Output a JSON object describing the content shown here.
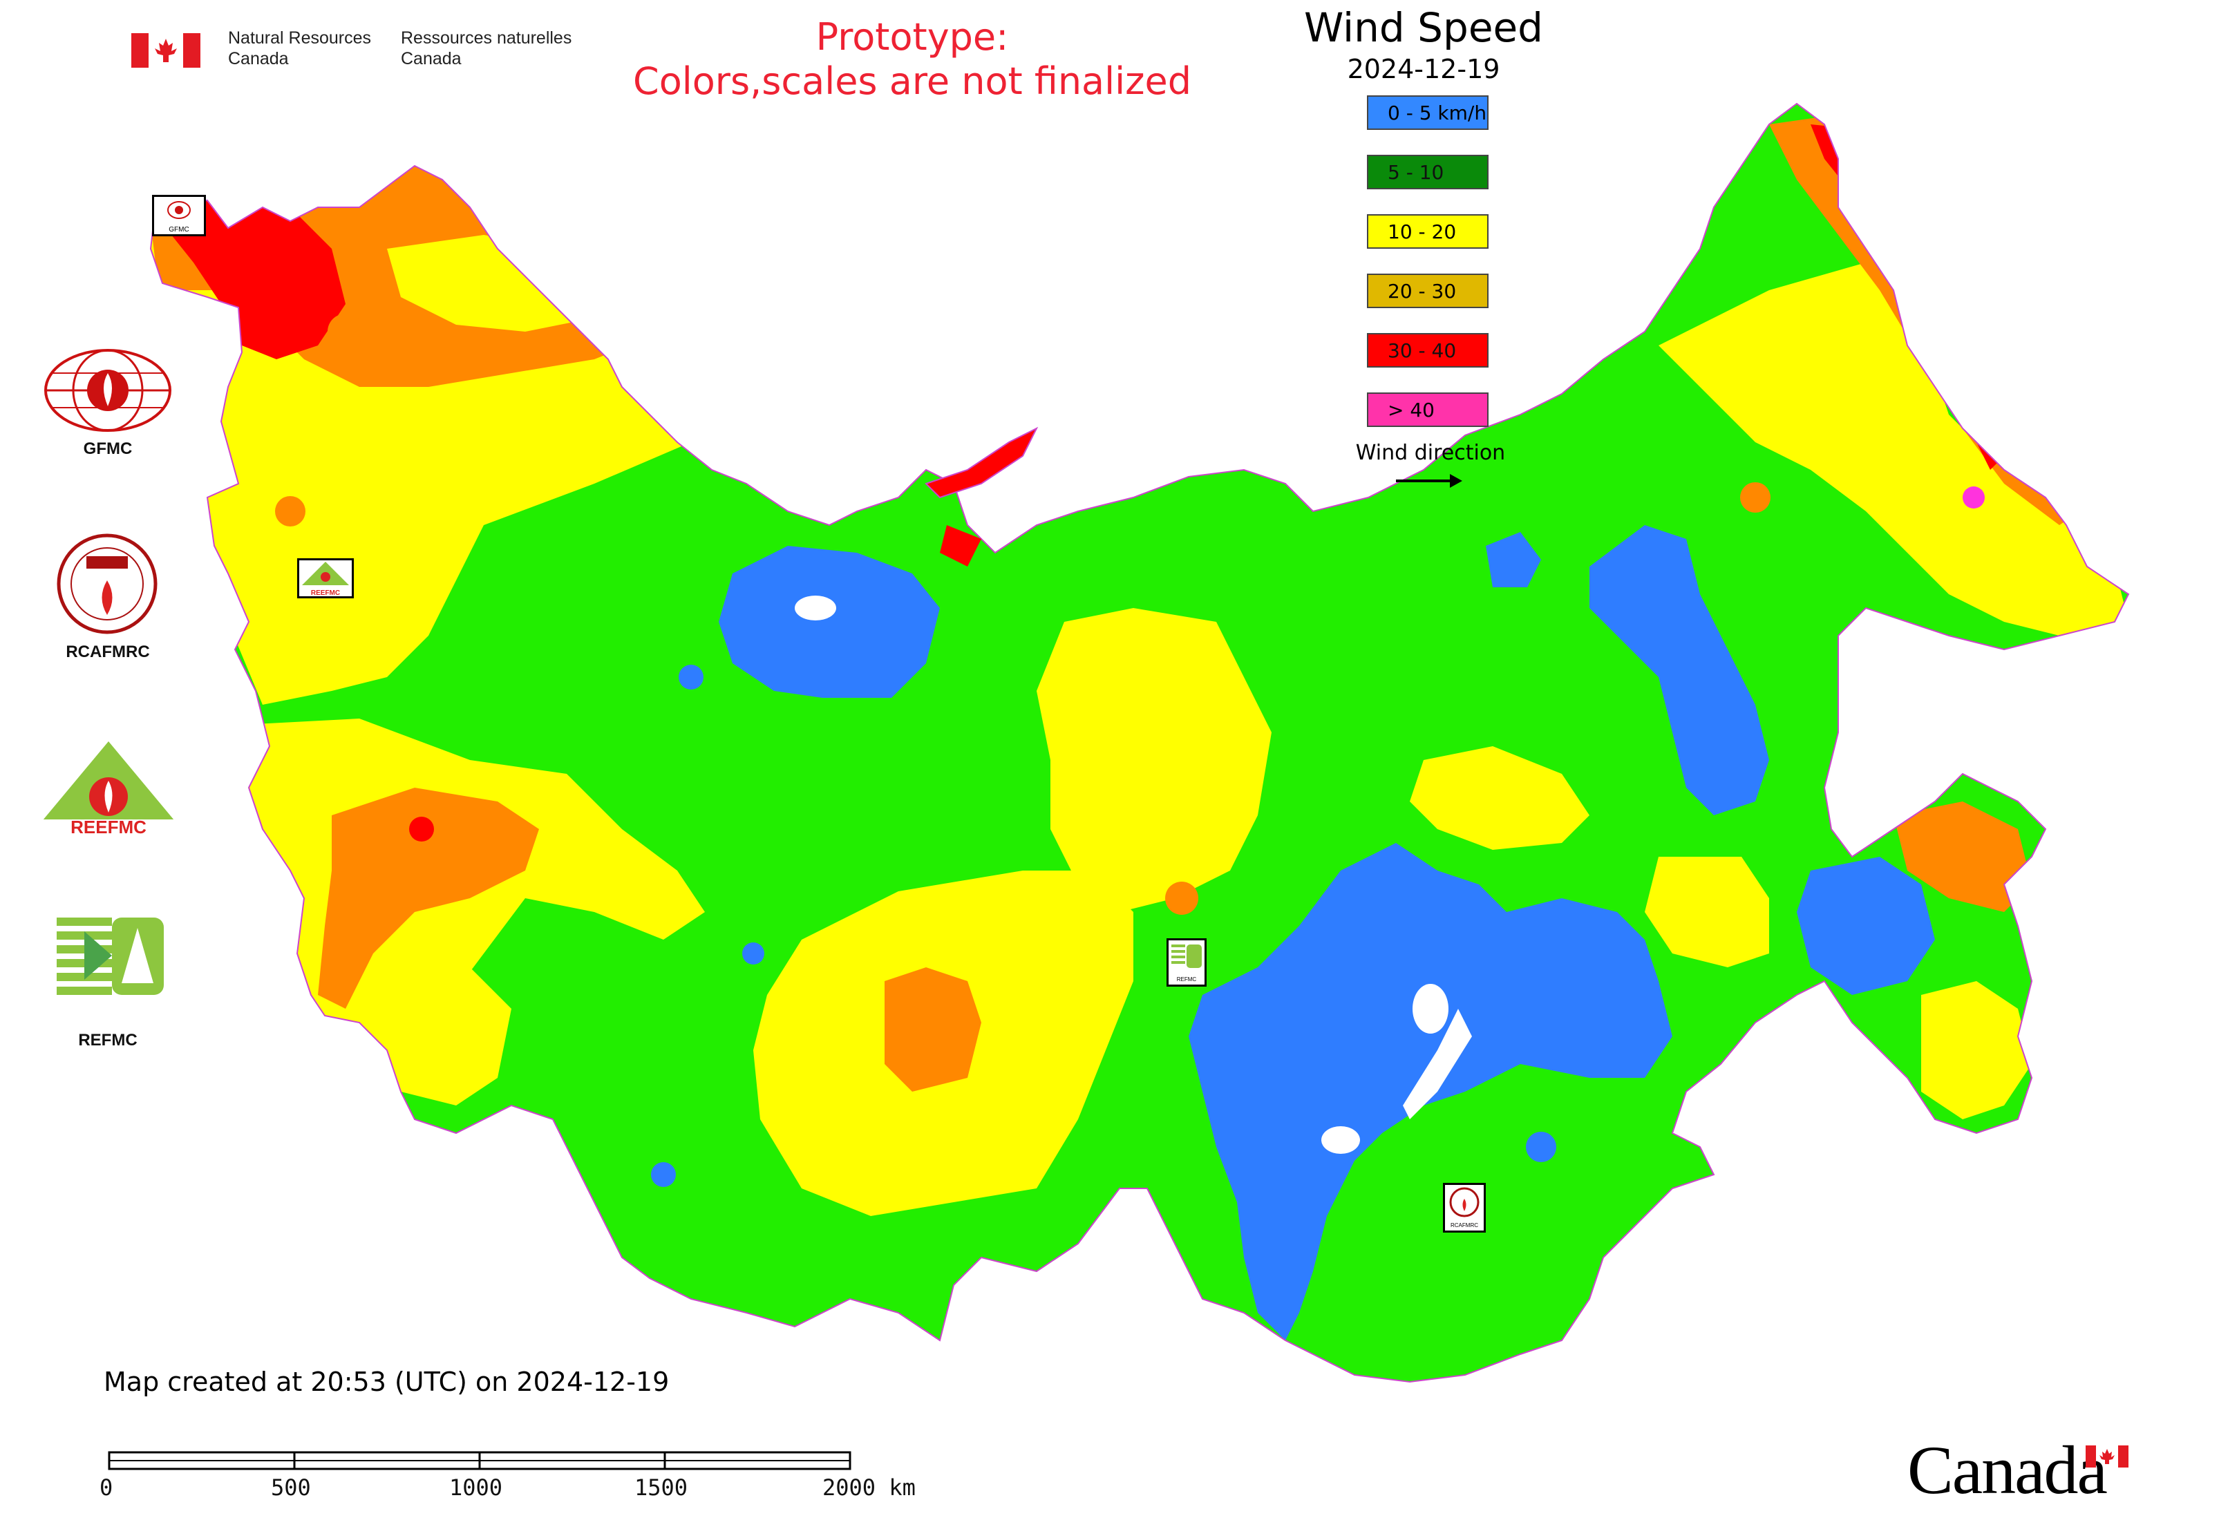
{
  "header": {
    "gov_en_line1": "Natural Resources",
    "gov_en_line2": "Canada",
    "gov_fr_line1": "Ressources naturelles",
    "gov_fr_line2": "Canada",
    "prototype_line1": "Prototype:",
    "prototype_line2": "Colors,scales are not finalized"
  },
  "map": {
    "title": "Wind Speed",
    "date": "2024-12-19",
    "legend": [
      {
        "label": "0 - 5 km/h",
        "color": "#3388ff"
      },
      {
        "label": "5 - 10",
        "color": "#0a8a0a"
      },
      {
        "label": "10 - 20",
        "color": "#ffff00"
      },
      {
        "label": "20 - 30",
        "color": "#e0b800"
      },
      {
        "label": "30 - 40",
        "color": "#ff0000"
      },
      {
        "label": "> 40",
        "color": "#ff33aa"
      }
    ],
    "wind_direction_label": "Wind direction",
    "zone_colors": {
      "blue": "#2f7dff",
      "green": "#22ee00",
      "yellow": "#ffff00",
      "orange": "#ff8800",
      "red": "#ff0000",
      "magenta": "#ff33dd",
      "boundary": "#cc44cc"
    }
  },
  "logos": [
    {
      "label": "GFMC"
    },
    {
      "label": "RCAFMRC"
    },
    {
      "label": "REEFMC"
    },
    {
      "label": "REFMC"
    }
  ],
  "map_badges": {
    "gfmc": "GFMC",
    "reefmc": "REEFMC",
    "refmc": "REFMC",
    "rcafmrc": "RCAFMRC"
  },
  "footer": {
    "created": "Map created at 20:53 (UTC) on 2024-12-19",
    "scale_labels": [
      "0",
      "500",
      "1000",
      "1500",
      "2000 km"
    ],
    "wordmark": "Canada"
  }
}
